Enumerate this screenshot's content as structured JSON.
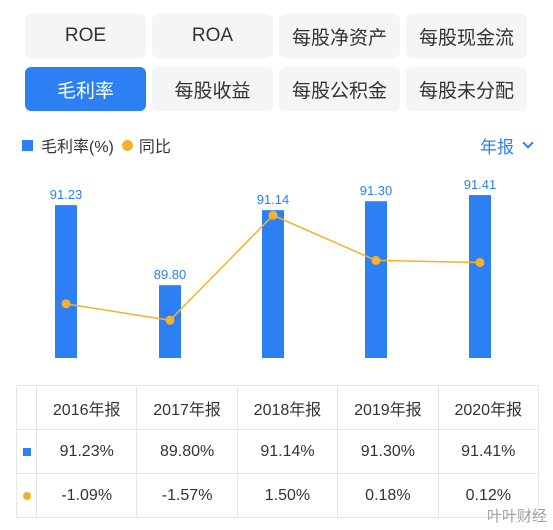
{
  "tabs": {
    "row1": [
      "ROE",
      "ROA",
      "每股净资产",
      "每股现金流"
    ],
    "row2": [
      "毛利率",
      "每股收益",
      "每股公积金",
      "每股未分配"
    ],
    "active": "毛利率"
  },
  "legend": {
    "bar_label": "毛利率(%)",
    "line_label": "同比"
  },
  "period_selector": "年报",
  "colors": {
    "accent": "#2c80f3",
    "line": "#f5b12c",
    "positive": "#e8484d",
    "negative": "#2aa757"
  },
  "chart_data": {
    "type": "bar",
    "categories": [
      "2016年报",
      "2017年报",
      "2018年报",
      "2019年报",
      "2020年报"
    ],
    "series": [
      {
        "name": "毛利率(%)",
        "type": "bar",
        "values": [
          91.23,
          89.8,
          91.14,
          91.3,
          91.41
        ]
      },
      {
        "name": "同比",
        "type": "line",
        "values": [
          -1.09,
          -1.57,
          1.5,
          0.18,
          0.12
        ]
      }
    ],
    "data_labels": [
      "91.23",
      "89.80",
      "91.14",
      "91.30",
      "91.41"
    ]
  },
  "table": {
    "headers": [
      "2016年报",
      "2017年报",
      "2018年报",
      "2019年报",
      "2020年报"
    ],
    "rows": [
      {
        "marker": "bar",
        "cells": [
          "91.23%",
          "89.80%",
          "91.14%",
          "91.30%",
          "91.41%"
        ],
        "signs": [
          "",
          "",
          "",
          "",
          ""
        ]
      },
      {
        "marker": "dot",
        "cells": [
          "-1.09%",
          "-1.57%",
          "1.50%",
          "0.18%",
          "0.12%"
        ],
        "signs": [
          "neg",
          "neg",
          "pos",
          "pos",
          "pos"
        ]
      }
    ]
  },
  "watermark": "叶叶财经"
}
